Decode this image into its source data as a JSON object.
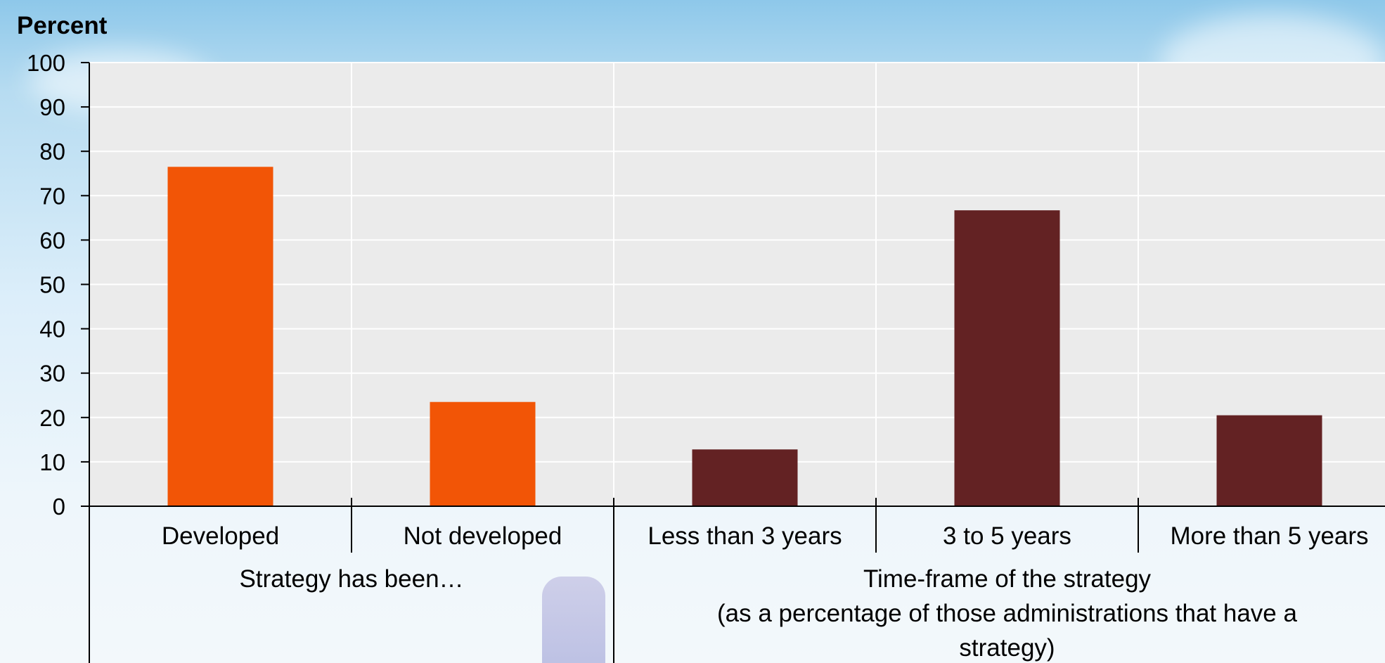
{
  "chart_data": {
    "type": "bar",
    "ylabel": "Percent",
    "ylim": [
      0,
      100
    ],
    "yticks": [
      0,
      10,
      20,
      30,
      40,
      50,
      60,
      70,
      80,
      90,
      100
    ],
    "grid": true,
    "categories": [
      "Developed",
      "Not developed",
      "Less than 3 years",
      "3 to 5 years",
      "More than 5 years"
    ],
    "values": [
      76.5,
      23.5,
      12.8,
      66.7,
      20.5
    ],
    "bar_colors": [
      "#f25506",
      "#f25506",
      "#632223",
      "#632223",
      "#632223"
    ],
    "groups": [
      {
        "label_lines": [
          "Strategy has been…"
        ],
        "categories": [
          0,
          1
        ]
      },
      {
        "label_lines": [
          "Time-frame of the strategy",
          "(as a percentage of those administrations that have a",
          "strategy)"
        ],
        "categories": [
          2,
          3,
          4
        ]
      }
    ]
  },
  "colors": {
    "plot_bg": "#ebebeb",
    "gridline": "#ffffff",
    "axis": "#000000"
  }
}
